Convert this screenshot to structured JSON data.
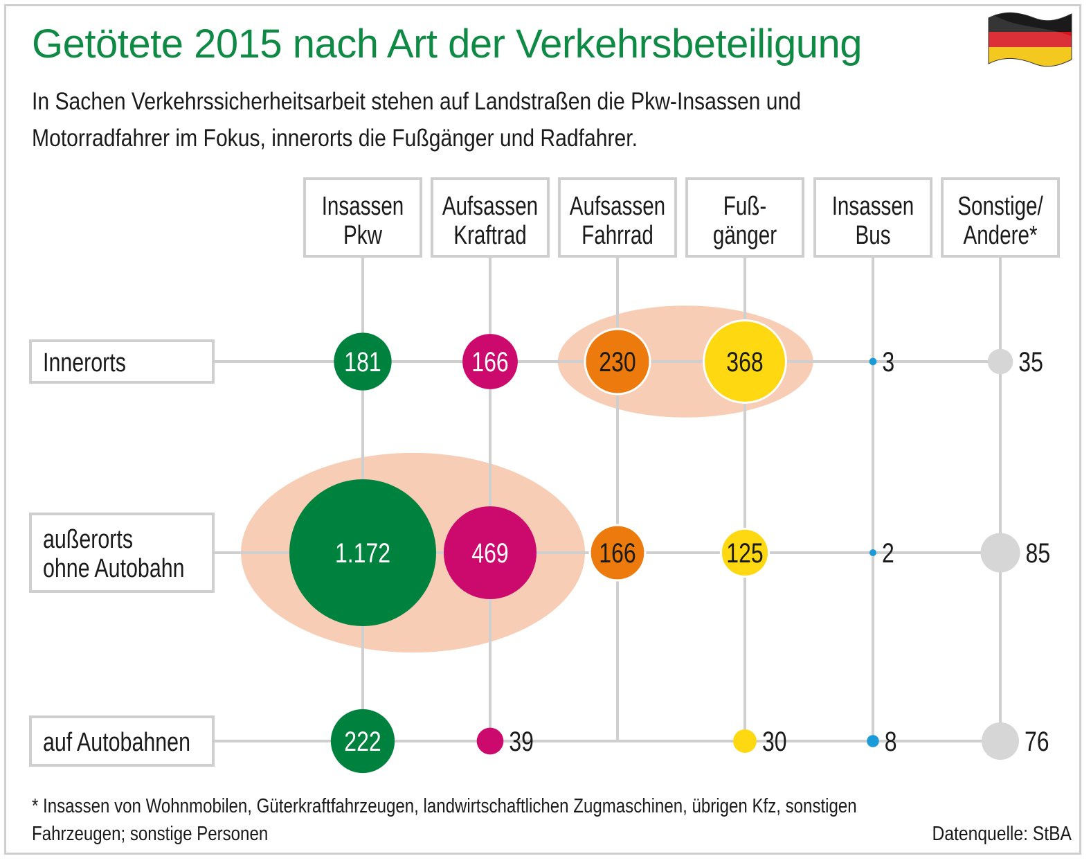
{
  "title": "Getötete 2015 nach Art der Verkehrsbeteiligung",
  "subtitle": "In Sachen Verkehrssicherheitsarbeit stehen auf Landstraßen die Pkw-Insassen und Motorradfahrer im Fokus, innerorts die Fußgänger und Radfahrer.",
  "footnote": "* Insassen von Wohnmobilen, Güterkraftfahrzeugen, landwirtschaftlichen Zugmaschinen, übrigen Kfz, sonstigen Fahrzeugen; sonstige Personen",
  "source": "Datenquelle: StBA",
  "flag_icon": "germany-flag-icon",
  "colors": {
    "title": "#0f8a45",
    "grid": "#cfcfcf",
    "highlight": "#f7cdb5",
    "pkw": "#00823f",
    "kraftrad": "#cc0a6e",
    "fahrrad": "#ec7a0c",
    "fussgaenger": "#fed811",
    "bus": "#1a9ad7",
    "sonstige": "#d6d6d6"
  },
  "chart_data": {
    "type": "bubble-matrix",
    "columns": [
      {
        "key": "pkw",
        "label": [
          "Insassen",
          "Pkw"
        ]
      },
      {
        "key": "kraftrad",
        "label": [
          "Aufsassen",
          "Kraftrad"
        ]
      },
      {
        "key": "fahrrad",
        "label": [
          "Aufsassen",
          "Fahrrad"
        ]
      },
      {
        "key": "fussgaenger",
        "label": [
          "Fuß-",
          "gänger"
        ]
      },
      {
        "key": "bus",
        "label": [
          "Insassen",
          "Bus"
        ]
      },
      {
        "key": "sonstige",
        "label": [
          "Sonstige/",
          "Andere*"
        ]
      }
    ],
    "rows": [
      {
        "key": "innerorts",
        "label": [
          "Innerorts"
        ],
        "values": [
          181,
          166,
          230,
          368,
          3,
          35
        ],
        "display": [
          "181",
          "166",
          "230",
          "368",
          "3",
          "35"
        ]
      },
      {
        "key": "ausserorts",
        "label": [
          "außerorts",
          "ohne Autobahn"
        ],
        "values": [
          1172,
          469,
          166,
          125,
          2,
          85
        ],
        "display": [
          "1.172",
          "469",
          "166",
          "125",
          "2",
          "85"
        ]
      },
      {
        "key": "autobahn",
        "label": [
          "auf Autobahnen"
        ],
        "values": [
          222,
          39,
          null,
          30,
          8,
          76
        ],
        "display": [
          "222",
          "39",
          "",
          "30",
          "8",
          "76"
        ]
      }
    ],
    "highlights": [
      {
        "row": "innerorts",
        "columns": [
          "fahrrad",
          "fussgaenger"
        ]
      },
      {
        "row": "ausserorts",
        "columns": [
          "pkw",
          "kraftrad"
        ]
      }
    ]
  }
}
